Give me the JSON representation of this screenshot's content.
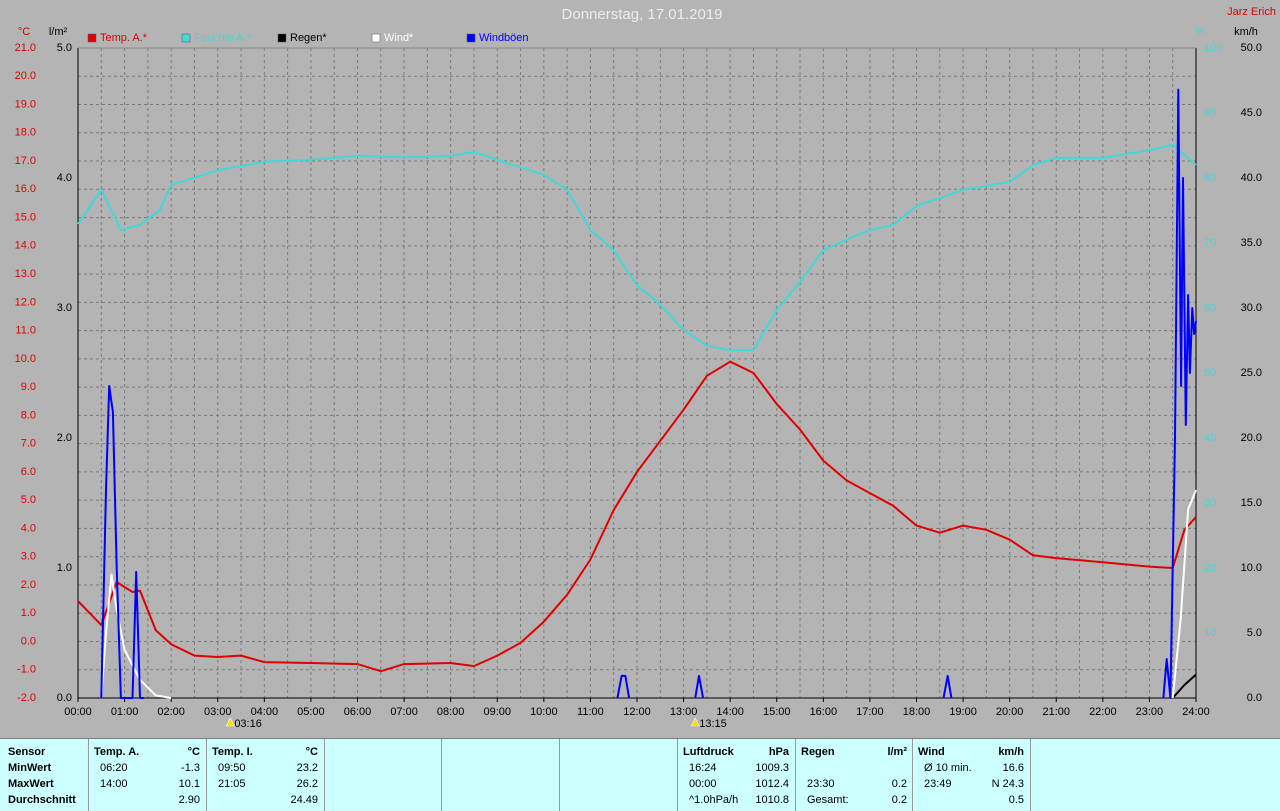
{
  "header": {
    "author": "Jarz Erich"
  },
  "chart_data": {
    "type": "line",
    "title": "Donnerstag, 17.01.2019",
    "xlim": [
      0,
      24
    ],
    "xticks": [
      {
        "value": 0,
        "label": "00:00"
      },
      {
        "value": 1,
        "label": "01:00"
      },
      {
        "value": 2,
        "label": "02:00"
      },
      {
        "value": 3,
        "label": "03:00"
      },
      {
        "value": 4,
        "label": "04:00"
      },
      {
        "value": 5,
        "label": "05:00"
      },
      {
        "value": 6,
        "label": "06:00"
      },
      {
        "value": 7,
        "label": "07:00"
      },
      {
        "value": 8,
        "label": "08:00"
      },
      {
        "value": 9,
        "label": "09:00"
      },
      {
        "value": 10,
        "label": "10:00"
      },
      {
        "value": 11,
        "label": "11:00"
      },
      {
        "value": 12,
        "label": "12:00"
      },
      {
        "value": 13,
        "label": "13:00"
      },
      {
        "value": 14,
        "label": "14:00"
      },
      {
        "value": 15,
        "label": "15:00"
      },
      {
        "value": 16,
        "label": "16:00"
      },
      {
        "value": 17,
        "label": "17:00"
      },
      {
        "value": 18,
        "label": "18:00"
      },
      {
        "value": 19,
        "label": "19:00"
      },
      {
        "value": 20,
        "label": "20:00"
      },
      {
        "value": 21,
        "label": "21:00"
      },
      {
        "value": 22,
        "label": "22:00"
      },
      {
        "value": 23,
        "label": "23:00"
      },
      {
        "value": 24,
        "label": "24:00"
      }
    ],
    "xminorticks": [
      0.5,
      1.5,
      2.5,
      3.5,
      4.5,
      5.5,
      6.5,
      7.5,
      8.5,
      9.5,
      10.5,
      11.5,
      12.5,
      13.5,
      14.5,
      15.5,
      16.5,
      17.5,
      18.5,
      19.5,
      20.5,
      21.5,
      22.5,
      23.5
    ],
    "ylabel": "°C",
    "ylim": [
      -2,
      21
    ],
    "yticks": [
      {
        "value": -2,
        "label": "-2.0"
      },
      {
        "value": -1,
        "label": "-1.0"
      },
      {
        "value": 0,
        "label": "0.0"
      },
      {
        "value": 1,
        "label": "1.0"
      },
      {
        "value": 2,
        "label": "2.0"
      },
      {
        "value": 3,
        "label": "3.0"
      },
      {
        "value": 4,
        "label": "4.0"
      },
      {
        "value": 5,
        "label": "5.0"
      },
      {
        "value": 6,
        "label": "6.0"
      },
      {
        "value": 7,
        "label": "7.0"
      },
      {
        "value": 8,
        "label": "8.0"
      },
      {
        "value": 9,
        "label": "9.0"
      },
      {
        "value": 10,
        "label": "10.0"
      },
      {
        "value": 11,
        "label": "11.0"
      },
      {
        "value": 12,
        "label": "12.0"
      },
      {
        "value": 13,
        "label": "13.0"
      },
      {
        "value": 14,
        "label": "14.0"
      },
      {
        "value": 15,
        "label": "15.0"
      },
      {
        "value": 16,
        "label": "16.0"
      },
      {
        "value": 17,
        "label": "17.0"
      },
      {
        "value": 18,
        "label": "18.0"
      },
      {
        "value": 19,
        "label": "19.0"
      },
      {
        "value": 20,
        "label": "20.0"
      },
      {
        "value": 21,
        "label": "21.0"
      }
    ],
    "y2label": "l/m²",
    "y2lim": [
      0,
      5
    ],
    "y2ticks": [
      {
        "value": 0,
        "label": "0.0"
      },
      {
        "value": 1,
        "label": "1.0"
      },
      {
        "value": 2,
        "label": "2.0"
      },
      {
        "value": 3,
        "label": "3.0"
      },
      {
        "value": 4,
        "label": "4.0"
      },
      {
        "value": 5,
        "label": "5.0"
      }
    ],
    "y3label": "%",
    "y3lim": [
      0,
      100
    ],
    "y3ticks": [
      10,
      20,
      30,
      40,
      50,
      60,
      70,
      80,
      90,
      100
    ],
    "y4label": "km/h",
    "y4lim": [
      0,
      50
    ],
    "y4ticks": [
      {
        "value": 0,
        "label": "0.0"
      },
      {
        "value": 5,
        "label": "5.0"
      },
      {
        "value": 10,
        "label": "10.0"
      },
      {
        "value": 15,
        "label": "15.0"
      },
      {
        "value": 20,
        "label": "20.0"
      },
      {
        "value": 25,
        "label": "25.0"
      },
      {
        "value": 30,
        "label": "30.0"
      },
      {
        "value": 35,
        "label": "35.0"
      },
      {
        "value": 40,
        "label": "40.0"
      },
      {
        "value": 45,
        "label": "45.0"
      },
      {
        "value": 50,
        "label": "50.0"
      }
    ],
    "grid": true,
    "series": [
      {
        "name": "Temp. A.*",
        "color": "#e00000",
        "axis": "y",
        "x": [
          0,
          0.5,
          0.83,
          1.17,
          1.33,
          1.67,
          2,
          2.5,
          3,
          3.5,
          4,
          5,
          6,
          6.5,
          7,
          8,
          8.5,
          9,
          9.5,
          10,
          10.5,
          11,
          11.5,
          12,
          12.5,
          13,
          13.5,
          14,
          14.5,
          15,
          15.5,
          16,
          16.5,
          17,
          17.5,
          18,
          18.5,
          19,
          19.5,
          20,
          20.5,
          21,
          22,
          23,
          23.5,
          23.75,
          24
        ],
        "values": [
          1.43,
          0.58,
          2.1,
          1.75,
          1.8,
          0.4,
          -0.1,
          -0.5,
          -0.55,
          -0.5,
          -0.73,
          -0.76,
          -0.8,
          -1.05,
          -0.8,
          -0.76,
          -0.87,
          -0.5,
          -0.05,
          0.7,
          1.65,
          2.9,
          4.65,
          6.0,
          7.1,
          8.2,
          9.4,
          9.9,
          9.5,
          8.4,
          7.5,
          6.4,
          5.7,
          5.25,
          4.8,
          4.1,
          3.85,
          4.1,
          3.95,
          3.6,
          3.05,
          2.95,
          2.8,
          2.65,
          2.6,
          3.95,
          4.4
        ]
      },
      {
        "name": "Feuchte A.*",
        "color": "#40d8d8",
        "axis": "y3",
        "x": [
          0,
          0.5,
          0.92,
          1.33,
          1.75,
          2,
          3,
          4,
          5,
          6,
          7,
          8,
          8.5,
          9,
          10,
          10.5,
          11,
          11.5,
          12,
          12.5,
          13,
          13.5,
          14,
          14.5,
          15,
          15.5,
          16,
          16.5,
          17,
          17.5,
          18,
          18.5,
          19,
          20,
          20.5,
          21,
          22,
          23,
          23.5,
          24
        ],
        "values": [
          72.9,
          78.2,
          72,
          72.8,
          75,
          78.9,
          81.2,
          82.5,
          82.8,
          83.4,
          83.2,
          83.4,
          84,
          82.8,
          80.5,
          78.2,
          72,
          68.9,
          63.5,
          60.5,
          56.6,
          54.2,
          53.5,
          53.5,
          59.7,
          64,
          68.9,
          70.5,
          72,
          72.8,
          75.7,
          76.9,
          78.2,
          79.4,
          82,
          83.1,
          83.1,
          84.3,
          85.1,
          82
        ]
      },
      {
        "name": "Regen*",
        "color": "#000000",
        "axis": "y2",
        "x": [
          23.5,
          23.75,
          24
        ],
        "values": [
          0,
          0.1,
          0.18
        ]
      },
      {
        "name": "Wind*",
        "color": "#ffffff",
        "axis": "y4",
        "x": [
          0.5,
          0.6,
          0.72,
          0.83,
          1,
          1.33,
          1.67,
          2,
          12,
          23.5,
          23.67,
          23.83,
          24
        ],
        "values": [
          0,
          5,
          9.5,
          6.8,
          3.7,
          1.4,
          0.2,
          0,
          null,
          0,
          6,
          14.5,
          16
        ]
      },
      {
        "name": "Windböen",
        "color": "#0000ff",
        "axis": "y4",
        "x": [
          0.5,
          0.6,
          0.67,
          0.75,
          0.83,
          0.92,
          1.17,
          1.25,
          1.33,
          1.42,
          5,
          11.58,
          11.67,
          11.75,
          11.83,
          12,
          13.25,
          13.33,
          13.42,
          15,
          18.58,
          18.67,
          18.75,
          20,
          23.3,
          23.37,
          23.45,
          23.55,
          23.62,
          23.68,
          23.72,
          23.78,
          23.83,
          23.87,
          23.92,
          23.96,
          24
        ],
        "values": [
          0,
          16,
          24,
          22,
          10,
          0,
          0,
          9.7,
          0,
          0,
          null,
          0,
          1.7,
          1.7,
          0,
          null,
          0,
          1.7,
          0,
          null,
          0,
          1.7,
          0,
          null,
          0,
          3,
          0,
          20,
          46.8,
          24,
          40,
          21,
          31,
          25,
          30,
          28,
          29
        ]
      }
    ],
    "annotations": [
      {
        "x": 3.27,
        "text": "03:16"
      },
      {
        "x": 13.25,
        "text": "13:15"
      }
    ]
  },
  "stats_table": {
    "header": "Sensor",
    "row_labels": [
      "MinWert",
      "MaxWert",
      "Durchschnitt"
    ],
    "groups": [
      {
        "name": "Temp. A.",
        "unit": "°C",
        "rows": [
          [
            "06:20",
            "-1.3"
          ],
          [
            "14:00",
            "10.1"
          ],
          [
            null,
            "2.90"
          ]
        ]
      },
      {
        "name": "Temp. I.",
        "unit": "°C",
        "rows": [
          [
            "09:50",
            "23.2"
          ],
          [
            "21:05",
            "26.2"
          ],
          [
            null,
            "24.49"
          ]
        ]
      },
      {
        "name": "Luftdruck",
        "unit": "hPa",
        "rows": [
          [
            "16:24",
            "1009.3"
          ],
          [
            "00:00",
            "1012.4"
          ],
          [
            "^1.0hPa/h",
            "1010.8"
          ]
        ]
      },
      {
        "name": "Regen",
        "unit": "l/m²",
        "rows": [
          [
            null,
            null
          ],
          [
            "23:30",
            "0.2"
          ],
          [
            "Gesamt:",
            "0.2"
          ]
        ]
      },
      {
        "name": "Wind",
        "unit": "km/h",
        "rows": [
          [
            "Ø 10 min.",
            "16.6"
          ],
          [
            "23:49",
            "N 24.3"
          ],
          [
            null,
            "0.5"
          ]
        ]
      }
    ]
  }
}
